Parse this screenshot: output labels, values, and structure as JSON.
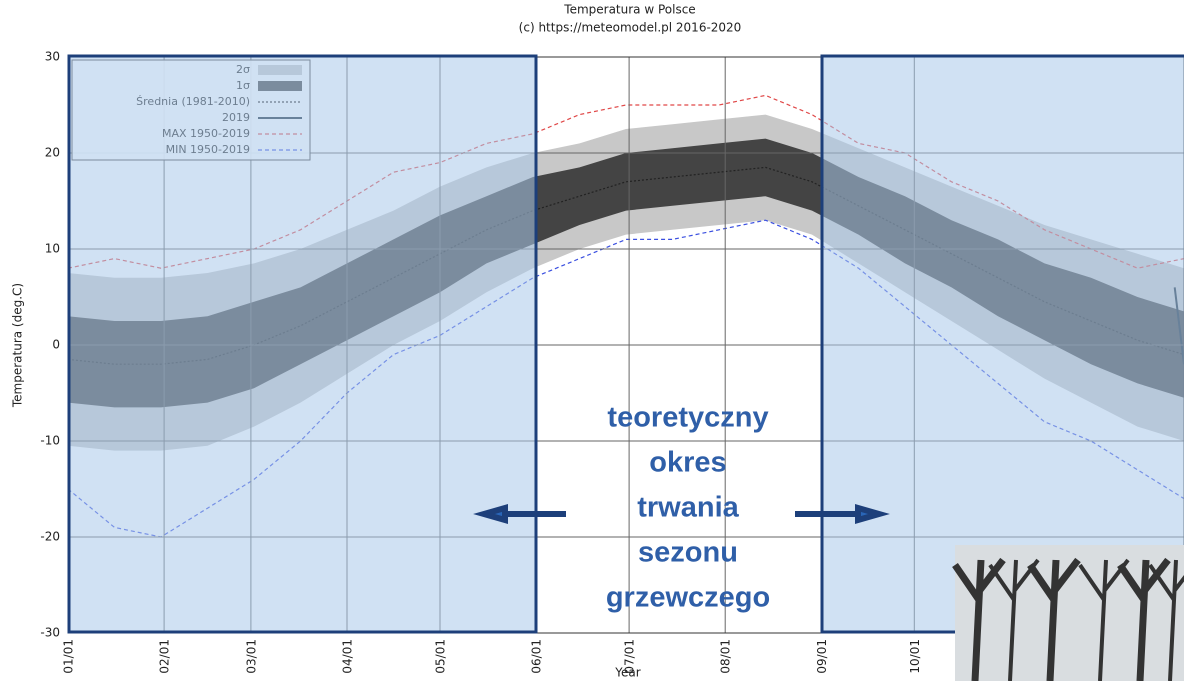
{
  "chart_data": {
    "type": "band",
    "title": "Temperatura w Polsce",
    "subtitle": "(c) https://meteomodel.pl 2016-2020",
    "ylabel": "Temperatura (deg.C)",
    "xlabel": "Year",
    "x": [
      0,
      15,
      30,
      45,
      60,
      75,
      90,
      105,
      120,
      135,
      150,
      165,
      180,
      195,
      210,
      225,
      240,
      255,
      270,
      285,
      300,
      315,
      330,
      345,
      360
    ],
    "xlim": [
      0,
      360
    ],
    "xticks": [
      {
        "value": 0,
        "label": "01/01"
      },
      {
        "value": 31,
        "label": "02/01"
      },
      {
        "value": 59,
        "label": "03/01"
      },
      {
        "value": 90,
        "label": "04/01"
      },
      {
        "value": 120,
        "label": "05/01"
      },
      {
        "value": 151,
        "label": "06/01"
      },
      {
        "value": 181,
        "label": "07/01"
      },
      {
        "value": 212,
        "label": "08/01"
      },
      {
        "value": 243,
        "label": "09/01"
      },
      {
        "value": 273,
        "label": "10/01"
      }
    ],
    "ylim": [
      -30,
      30
    ],
    "yticks": [
      -30,
      -20,
      -10,
      0,
      10,
      20,
      30
    ],
    "grid": true,
    "legend": "upper left",
    "bands": [
      {
        "name": "2σ",
        "color": "#c8c8c8",
        "upper": [
          7.5,
          7,
          7,
          7.5,
          8.5,
          10,
          12,
          14,
          16.5,
          18.5,
          20,
          21,
          22.5,
          23,
          23.5,
          24,
          22.5,
          20.5,
          18.5,
          16.5,
          14.5,
          12.5,
          11,
          9.5,
          8
        ],
        "lower": [
          -10.5,
          -11,
          -11,
          -10.5,
          -8.5,
          -6,
          -3,
          0,
          2.5,
          5.5,
          8,
          10,
          11.5,
          12,
          12.5,
          13,
          11.5,
          8.5,
          5.5,
          2.5,
          -0.5,
          -3.5,
          -6,
          -8.5,
          -10
        ]
      },
      {
        "name": "1σ",
        "color": "#444444",
        "upper": [
          3,
          2.5,
          2.5,
          3,
          4.5,
          6,
          8.5,
          11,
          13.5,
          15.5,
          17.5,
          18.5,
          20,
          20.5,
          21,
          21.5,
          20,
          17.5,
          15.5,
          13,
          11,
          8.5,
          7,
          5,
          3.5
        ],
        "lower": [
          -6,
          -6.5,
          -6.5,
          -6,
          -4.5,
          -2,
          0.5,
          3,
          5.5,
          8.5,
          10.5,
          12.5,
          14,
          14.5,
          15,
          15.5,
          14,
          11.5,
          8.5,
          6,
          3,
          0.5,
          -2,
          -4,
          -5.5
        ]
      }
    ],
    "series": [
      {
        "name": "Średnia (1981-2010)",
        "color": "#222222",
        "dash": "2,2",
        "values": [
          -1.5,
          -2,
          -2,
          -1.5,
          0,
          2,
          4.5,
          7,
          9.5,
          12,
          14,
          15.5,
          17,
          17.5,
          18,
          18.5,
          17,
          14.5,
          12,
          9.5,
          7,
          4.5,
          2.5,
          0.5,
          -1
        ]
      },
      {
        "name": "2019",
        "color": "#1a2a3a",
        "x": [
          357,
          360
        ],
        "values": [
          6,
          -2
        ]
      },
      {
        "name": "MAX 1950-2019",
        "color": "#e04848",
        "dash": "4,3",
        "values": [
          8,
          9,
          8,
          9,
          10,
          12,
          15,
          18,
          19,
          21,
          22,
          24,
          25,
          25,
          25,
          26,
          24,
          21,
          20,
          17,
          15,
          12,
          10,
          8,
          9
        ]
      },
      {
        "name": "MIN 1950-2019",
        "color": "#3a4fe0",
        "dash": "4,3",
        "values": [
          -15,
          -19,
          -20,
          -17,
          -14,
          -10,
          -5,
          -1,
          1,
          4,
          7,
          9,
          11,
          11,
          12,
          13,
          11,
          8,
          4,
          0,
          -4,
          -8,
          -10,
          -13,
          -16
        ]
      }
    ],
    "annotation": [
      "teoretyczny",
      "okres",
      "trwania",
      "sezonu",
      "grzewczego"
    ]
  }
}
